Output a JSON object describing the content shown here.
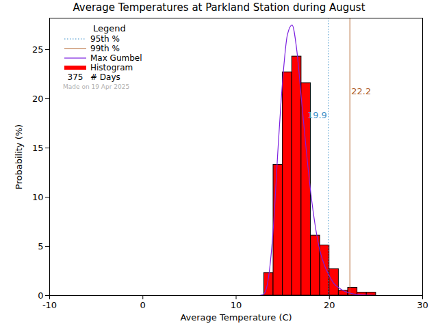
{
  "chart_data": {
    "type": "histogram",
    "title": "Average Temperatures at Parkland Station during August",
    "x_label": "Average Temperature (C)",
    "y_label": "Probability (%)",
    "name": "Histogram",
    "color": "#ff0000",
    "bins": [
      13,
      14,
      15,
      16,
      17,
      18,
      19,
      20,
      21,
      22,
      23,
      24,
      25
    ],
    "values": [
      2.3,
      13.3,
      22.7,
      24.3,
      21.6,
      6.1,
      5.1,
      2.7,
      0.5,
      0.8,
      0.3,
      0.3
    ],
    "xlim": [
      -10,
      30
    ],
    "xticks": [
      -10,
      0,
      10,
      20,
      30
    ],
    "ylim": [
      0,
      28.2
    ],
    "yticks": [
      0,
      5,
      10,
      15,
      20,
      25
    ],
    "curve": {
      "name": "Max Gumbel",
      "color": "#7b1fe0",
      "type": "line",
      "x": [
        12.5,
        13,
        13.5,
        14,
        14.5,
        15,
        15.5,
        16,
        16.5,
        17,
        17.5,
        18,
        18.5,
        19,
        19.5,
        20,
        20.5,
        21,
        21.5,
        22,
        23,
        24,
        25
      ],
      "values": [
        0,
        0.2,
        2,
        7,
        15,
        22,
        26.5,
        27.5,
        25,
        20,
        15,
        10.5,
        7,
        4.5,
        3,
        2,
        1.2,
        0.8,
        0.5,
        0.3,
        0.1,
        0.05,
        0
      ]
    },
    "percentiles": [
      {
        "name": "95th %",
        "value": 19.9,
        "color": "#3a8fc8",
        "line_style": "dotted"
      },
      {
        "name": "99th %",
        "value": 22.2,
        "color": "#b0602a",
        "line_style": "solid"
      }
    ],
    "days": {
      "label": "# Days",
      "value": 375
    },
    "legend_title": "Legend",
    "annotation": "Made on 19 Apr 2025",
    "legend": "top-left"
  }
}
